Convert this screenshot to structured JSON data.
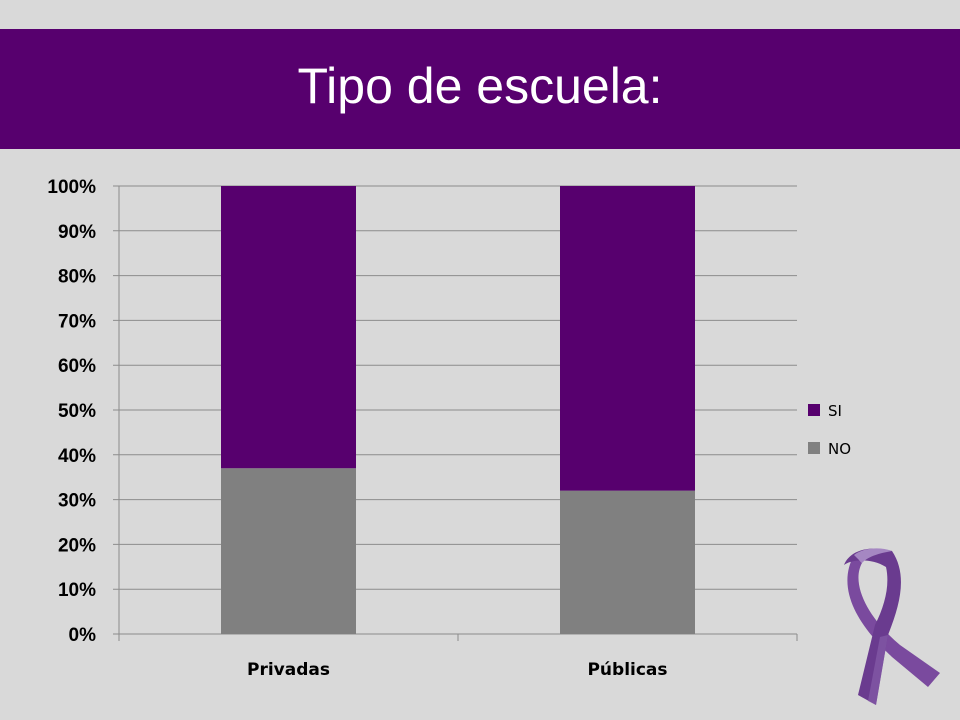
{
  "slide": {
    "title": "Tipo de escuela:",
    "ribbon_icon": "awareness-ribbon-icon"
  },
  "colors": {
    "background": "#d9d9d9",
    "title_bar": "#57006e",
    "si": "#57006e",
    "no": "#808080",
    "gridline": "#8c8c8c",
    "ribbon": "#7a4a9e"
  },
  "chart_data": {
    "type": "bar",
    "stacked": true,
    "categories": [
      "Privadas",
      "Públicas"
    ],
    "series": [
      {
        "name": "NO",
        "values": [
          37,
          32
        ]
      },
      {
        "name": "SI",
        "values": [
          63,
          68
        ]
      }
    ],
    "title": "",
    "xlabel": "",
    "ylabel": "",
    "ylim": [
      0,
      100
    ],
    "yticks": [
      "0%",
      "10%",
      "20%",
      "30%",
      "40%",
      "50%",
      "60%",
      "70%",
      "80%",
      "90%",
      "100%"
    ],
    "grid": true,
    "legend": {
      "position": "right",
      "entries": [
        "SI",
        "NO"
      ]
    }
  }
}
